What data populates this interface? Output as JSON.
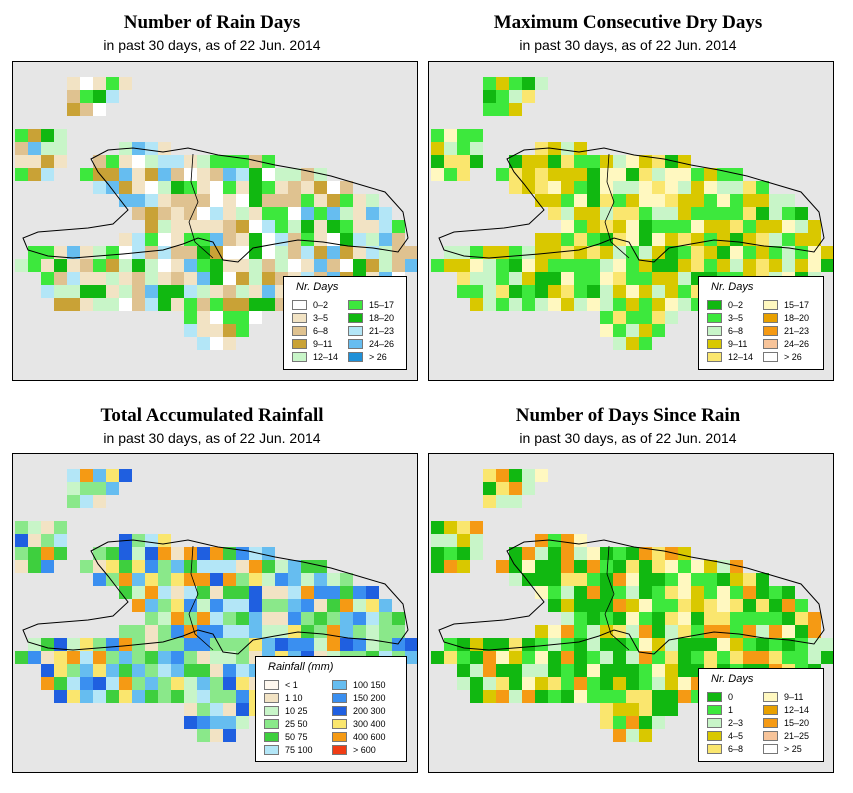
{
  "panels": [
    {
      "id": "rain_days",
      "title": "Number of Rain Days",
      "subtitle": "in past 30 days, as of  22 Jun. 2014",
      "legend": {
        "title": "Nr. Days",
        "items": [
          {
            "label": "0–2",
            "color": "#ffffff"
          },
          {
            "label": "3–5",
            "color": "#f2e3c4"
          },
          {
            "label": "6–8",
            "color": "#dfc290"
          },
          {
            "label": "9–11",
            "color": "#c9a236"
          },
          {
            "label": "12–14",
            "color": "#c8f5c8"
          },
          {
            "label": "15–17",
            "color": "#3de83d"
          },
          {
            "label": "18–20",
            "color": "#11b811"
          },
          {
            "label": "21–23",
            "color": "#b3e6f7"
          },
          {
            "label": "24–26",
            "color": "#66bdf0"
          },
          {
            "label": "> 26",
            "color": "#1e90d8"
          }
        ]
      }
    },
    {
      "id": "dry_days",
      "title": "Maximum Consecutive Dry Days",
      "subtitle": "in past 30 days, as of  22 Jun. 2014",
      "legend": {
        "title": "Nr. Days",
        "items": [
          {
            "label": "0–2",
            "color": "#11b811"
          },
          {
            "label": "3–5",
            "color": "#3de83d"
          },
          {
            "label": "6–8",
            "color": "#c8f5c8"
          },
          {
            "label": "9–11",
            "color": "#d9c800"
          },
          {
            "label": "12–14",
            "color": "#fae66e"
          },
          {
            "label": "15–17",
            "color": "#fff8c0"
          },
          {
            "label": "18–20",
            "color": "#e8a000"
          },
          {
            "label": "21–23",
            "color": "#f59a14"
          },
          {
            "label": "24–26",
            "color": "#f7c49a"
          },
          {
            "label": "> 26",
            "color": "#ffffff"
          }
        ]
      }
    },
    {
      "id": "rainfall",
      "title": "Total Accumulated Rainfall",
      "subtitle": "in past 30 days, as of  22 Jun. 2014",
      "legend": {
        "title": "Rainfall (mm)",
        "items": [
          {
            "label": "< 1",
            "color": "#fff8ef"
          },
          {
            "label": "1   10",
            "color": "#f2e3c4"
          },
          {
            "label": "10   25",
            "color": "#c8f5c8"
          },
          {
            "label": "25   50",
            "color": "#8ae88a"
          },
          {
            "label": "50   75",
            "color": "#3ecf3e"
          },
          {
            "label": "75  100",
            "color": "#b3e6f7"
          },
          {
            "label": "100  150",
            "color": "#66bdf0"
          },
          {
            "label": "150  200",
            "color": "#3a8ff0"
          },
          {
            "label": "200  300",
            "color": "#1f5fe0"
          },
          {
            "label": "300  400",
            "color": "#fae66e"
          },
          {
            "label": "400  600",
            "color": "#f59a14"
          },
          {
            "label": "> 600",
            "color": "#f03c14"
          }
        ]
      }
    },
    {
      "id": "since_rain",
      "title": "Number of Days Since Rain",
      "subtitle": "in past 30 days, as of  22 Jun. 2014",
      "legend": {
        "title": "Nr. Days",
        "items": [
          {
            "label": "0",
            "color": "#11b811"
          },
          {
            "label": "1",
            "color": "#3de83d"
          },
          {
            "label": "2–3",
            "color": "#c8f5c8"
          },
          {
            "label": "4–5",
            "color": "#d9c800"
          },
          {
            "label": "6–8",
            "color": "#fae66e"
          },
          {
            "label": "9–11",
            "color": "#fff8c0"
          },
          {
            "label": "12–14",
            "color": "#e8a000"
          },
          {
            "label": "15–20",
            "color": "#f59a14"
          },
          {
            "label": "21–25",
            "color": "#f7c49a"
          },
          {
            "label": "> 25",
            "color": "#ffffff"
          }
        ]
      }
    }
  ]
}
